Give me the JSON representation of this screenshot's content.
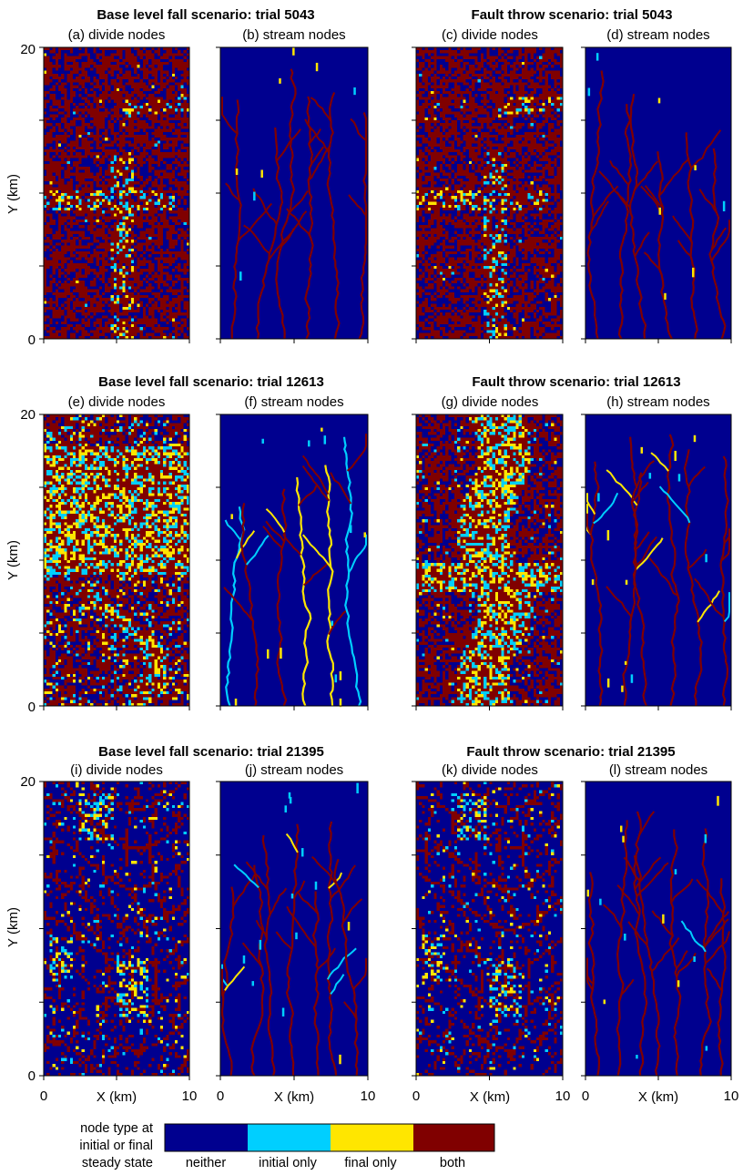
{
  "chart_data": {
    "type": "heatmap",
    "rows": [
      {
        "panels": [
          {
            "title": "Base level fall scenario: trial 5043",
            "maps": [
              "(a) divide nodes",
              "(b) stream nodes"
            ],
            "style": "dense-divides"
          },
          {
            "title": "Fault throw scenario: trial 5043",
            "maps": [
              "(c) divide nodes",
              "(d) stream nodes"
            ],
            "style": "dense-divides"
          }
        ]
      },
      {
        "panels": [
          {
            "title": "Base level fall scenario: trial 12613",
            "maps": [
              "(e) divide nodes",
              "(f) stream nodes"
            ],
            "style": "scattered-change"
          },
          {
            "title": "Fault throw scenario: trial 12613",
            "maps": [
              "(g) divide nodes",
              "(h) stream nodes"
            ],
            "style": "central-change"
          }
        ]
      },
      {
        "panels": [
          {
            "title": "Base level fall scenario: trial 21395",
            "maps": [
              "(i) divide nodes",
              "(j) stream nodes"
            ],
            "style": "sparse-network"
          },
          {
            "title": "Fault throw scenario: trial 21395",
            "maps": [
              "(k) divide nodes",
              "(l) stream nodes"
            ],
            "style": "sparse-network"
          }
        ]
      }
    ],
    "ylabel": "Y (km)",
    "xlabel": "X (km)",
    "xlim": [
      0,
      10
    ],
    "ylim": [
      0,
      20
    ],
    "x_ticks": [
      "0",
      "10"
    ],
    "y_ticks": [
      "0",
      "20"
    ],
    "legend": {
      "title_lines": [
        "node type at",
        "initial or final",
        "steady state"
      ],
      "categories": [
        "neither",
        "initial only",
        "final only",
        "both"
      ],
      "colors": [
        "#00008f",
        "#00cfff",
        "#ffe600",
        "#800000"
      ]
    }
  }
}
